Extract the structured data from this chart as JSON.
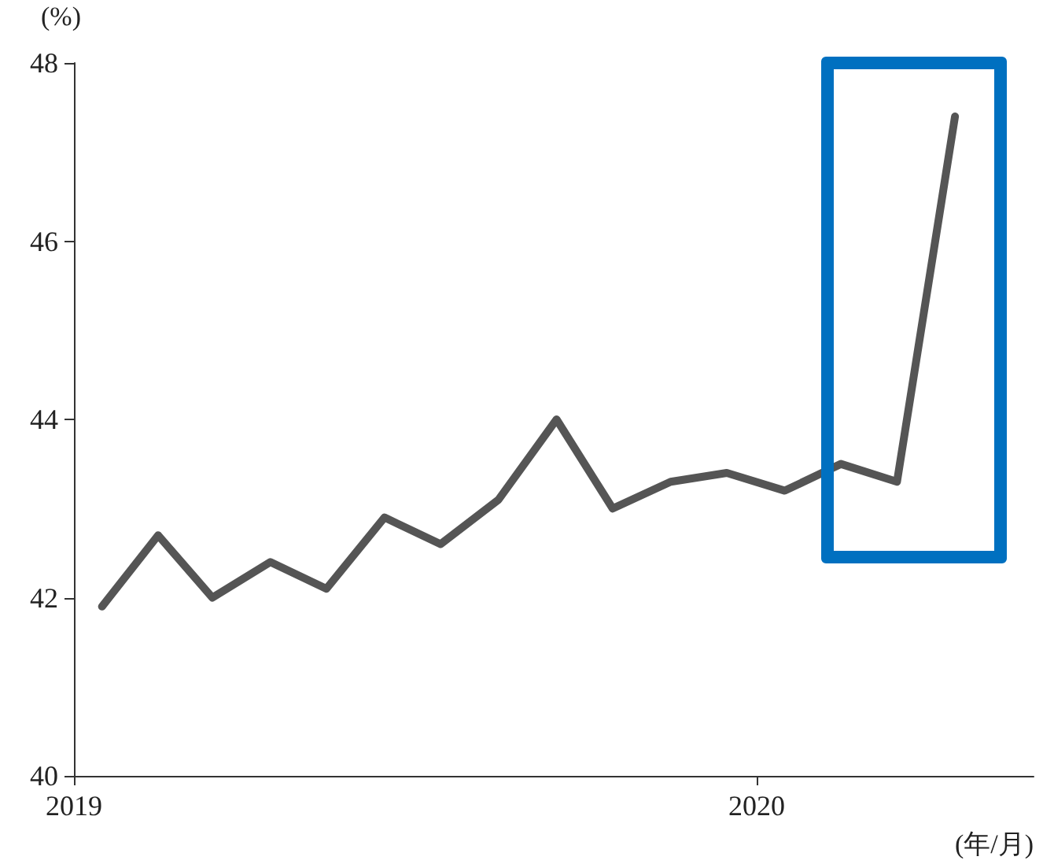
{
  "chart_data": {
    "type": "line",
    "ylabel": "(%)",
    "xlabel": "(年/月)",
    "x": [
      "2019-01-16",
      "2019-02-15",
      "2019-03-16",
      "2019-04-16",
      "2019-05-16",
      "2019-06-16",
      "2019-07-16",
      "2019-08-16",
      "2019-09-16",
      "2019-10-16",
      "2019-11-16",
      "2019-12-16",
      "2020-01-16",
      "2020-02-15",
      "2020-03-16",
      "2020-04-16"
    ],
    "series": [
      {
        "color": "#555555",
        "values": [
          41.9,
          42.7,
          42.0,
          42.4,
          42.1,
          42.9,
          42.6,
          43.1,
          44.0,
          43.0,
          43.3,
          43.4,
          43.2,
          43.5,
          43.3,
          47.4
        ]
      }
    ],
    "xlim": [
      "2019-01-01",
      "2020-05-28"
    ],
    "xticks": [
      {
        "value": "2019-01-01",
        "label": "2019"
      },
      {
        "value": "2020-01-01",
        "label": "2020"
      }
    ],
    "ylim": [
      40,
      48
    ],
    "yticks": [
      40,
      42,
      44,
      46,
      48
    ],
    "grid": false,
    "marker": "none",
    "line_style": "solid"
  }
}
